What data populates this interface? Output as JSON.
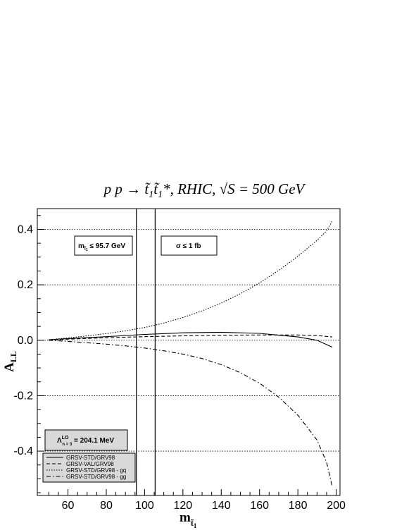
{
  "chart_data": {
    "type": "line",
    "title": {
      "prefix": "p p → ",
      "stop1": "t̃",
      "sub1": "1",
      "stop2": "t̃",
      "sub2": "1",
      "rest": "*, RHIC, ",
      "sqrt": "√S",
      "energy": " =  500 GeV"
    },
    "xlabel": {
      "main": "m",
      "sub": "t̃",
      "subsub": "1"
    },
    "ylabel": {
      "main": "A",
      "sub": "LL"
    },
    "xlim": [
      44,
      202
    ],
    "ylim": [
      -0.56,
      0.475
    ],
    "x_ticks": [
      60,
      80,
      100,
      120,
      140,
      160,
      180,
      200
    ],
    "y_ticks": [
      0.4,
      0.2,
      0.0,
      -0.2,
      -0.4
    ],
    "y_tick_labels": [
      "0.4",
      "0.2",
      "0.0",
      "-0.2",
      "-0.4"
    ],
    "grid_y": true,
    "vertical_lines": [
      95.7,
      105.5
    ],
    "annotations": {
      "mass_limit": {
        "pre": "m",
        "sub": "t̃",
        "subsub": "1",
        "post": " ≤ 95.7 GeV"
      },
      "cross_section": "σ ≤ 1 fb",
      "lambda": {
        "sym": "Λ",
        "sup": "LO",
        "sub": "n  = 3",
        "post": " = 204.1 MeV"
      }
    },
    "series": [
      {
        "name": "GRSV-STD/GRV98",
        "style": "solid",
        "x": [
          50,
          60,
          80,
          100,
          120,
          140,
          160,
          180,
          190,
          198
        ],
        "y": [
          0.002,
          0.006,
          0.013,
          0.021,
          0.027,
          0.029,
          0.025,
          0.012,
          0.0,
          -0.025
        ]
      },
      {
        "name": "GRSV-VAL/GRV98",
        "style": "dashed",
        "x": [
          50,
          60,
          80,
          100,
          120,
          140,
          160,
          180,
          190,
          198
        ],
        "y": [
          0.001,
          0.004,
          0.009,
          0.013,
          0.016,
          0.018,
          0.019,
          0.019,
          0.017,
          0.012
        ]
      },
      {
        "name": "GRSV-STD/GRV98 - gq",
        "style": "dotted",
        "x": [
          50,
          60,
          70,
          80,
          90,
          100,
          110,
          120,
          130,
          140,
          150,
          160,
          170,
          180,
          190,
          195,
          198
        ],
        "y": [
          0.002,
          0.008,
          0.016,
          0.024,
          0.034,
          0.046,
          0.062,
          0.082,
          0.106,
          0.134,
          0.168,
          0.207,
          0.252,
          0.303,
          0.36,
          0.395,
          0.43
        ]
      },
      {
        "name": "GRSV-STD/GRV98 - gg",
        "style": "dashdot",
        "x": [
          50,
          60,
          70,
          80,
          90,
          100,
          110,
          120,
          130,
          140,
          150,
          160,
          170,
          180,
          190,
          195,
          198
        ],
        "y": [
          0.0,
          -0.004,
          -0.009,
          -0.014,
          -0.02,
          -0.028,
          -0.038,
          -0.05,
          -0.066,
          -0.088,
          -0.117,
          -0.155,
          -0.205,
          -0.27,
          -0.36,
          -0.44,
          -0.53
        ]
      }
    ]
  }
}
